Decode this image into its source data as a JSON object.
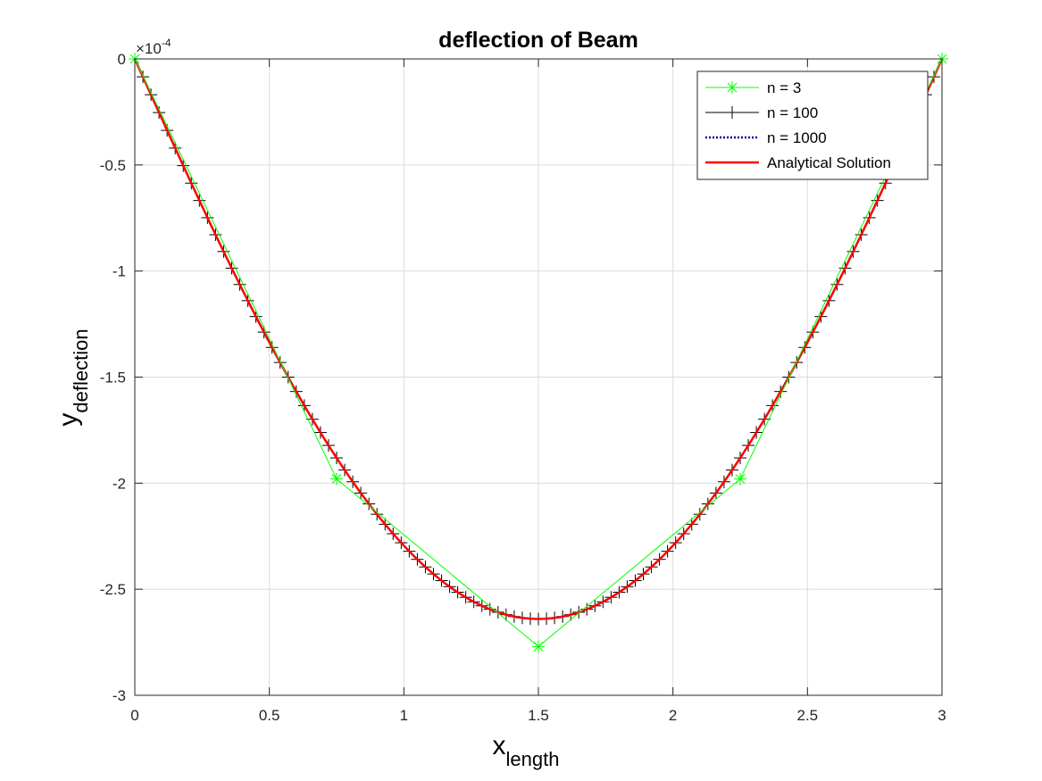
{
  "chart_data": {
    "type": "line",
    "title": "deflection of Beam",
    "xlabel": {
      "main": "x",
      "sub": "length"
    },
    "ylabel": {
      "main": "y",
      "sub": "deflection"
    },
    "xlim": [
      0,
      3
    ],
    "ylim": [
      -3,
      0
    ],
    "y_exponent": {
      "base": "×10",
      "power": "-4"
    },
    "grid": true,
    "legend_position": "top-right",
    "x_ticks": [
      {
        "v": 0,
        "label": "0"
      },
      {
        "v": 0.5,
        "label": "0.5"
      },
      {
        "v": 1,
        "label": "1"
      },
      {
        "v": 1.5,
        "label": "1.5"
      },
      {
        "v": 2,
        "label": "2"
      },
      {
        "v": 2.5,
        "label": "2.5"
      },
      {
        "v": 3,
        "label": "3"
      }
    ],
    "y_ticks": [
      {
        "v": 0,
        "label": "0"
      },
      {
        "v": -0.5,
        "label": "-0.5"
      },
      {
        "v": -1,
        "label": "-1"
      },
      {
        "v": -1.5,
        "label": "-1.5"
      },
      {
        "v": -2,
        "label": "-2"
      },
      {
        "v": -2.5,
        "label": "-2.5"
      },
      {
        "v": -3,
        "label": "-3"
      }
    ],
    "series": [
      {
        "name": "n = 3",
        "color": "#00ff00",
        "marker": "asterisk",
        "line": "solid",
        "x": [
          0,
          0.75,
          1.5,
          2.25,
          3
        ],
        "y": [
          0,
          -1.98,
          -2.77,
          -1.98,
          0
        ]
      },
      {
        "name": "n = 100",
        "color": "#000000",
        "marker": "plus",
        "line": "solid",
        "curve": "analytical",
        "points": 101
      },
      {
        "name": "n = 1000",
        "color": "#00008b",
        "marker": "none",
        "line": "dotted",
        "curve": "analytical",
        "points": 1001
      },
      {
        "name": "Analytical Solution",
        "color": "#ff0000",
        "marker": "none",
        "line": "solid",
        "curve": "analytical",
        "points": 301
      }
    ],
    "curve_min": -2.64
  }
}
